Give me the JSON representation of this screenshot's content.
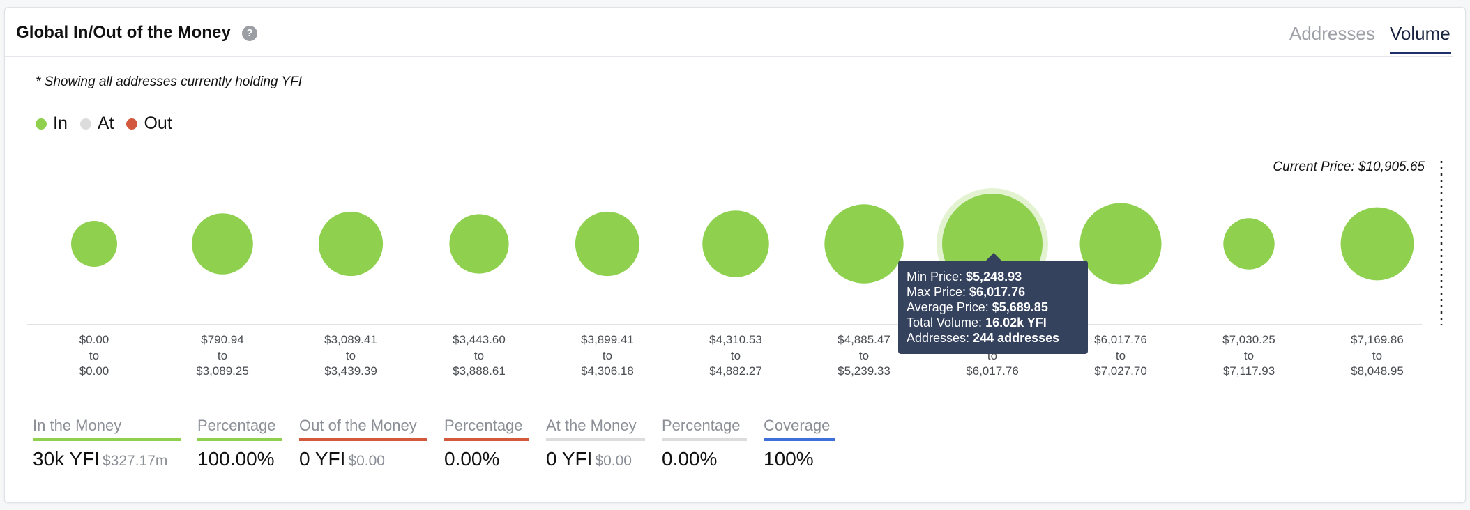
{
  "header": {
    "title": "Global In/Out of the Money",
    "tabs": [
      {
        "label": "Addresses",
        "active": false
      },
      {
        "label": "Volume",
        "active": true
      }
    ]
  },
  "note": "* Showing all addresses currently holding YFI",
  "legend": [
    {
      "label": "In",
      "color": "#8fd14f"
    },
    {
      "label": "At",
      "color": "#dcdcdc"
    },
    {
      "label": "Out",
      "color": "#d2583e"
    }
  ],
  "current_price_label": "Current Price: $10,905.65",
  "chart_data": {
    "type": "bubble",
    "current_price": 10905.65,
    "bins": [
      {
        "from": "$0.00",
        "to": "$0.00",
        "size": 0.21,
        "status": "In"
      },
      {
        "from": "$790.94",
        "to": "$3,089.25",
        "size": 0.37,
        "status": "In"
      },
      {
        "from": "$3,089.41",
        "to": "$3,439.39",
        "size": 0.41,
        "status": "In"
      },
      {
        "from": "$3,443.60",
        "to": "$3,888.61",
        "size": 0.35,
        "status": "In"
      },
      {
        "from": "$3,899.41",
        "to": "$4,306.18",
        "size": 0.41,
        "status": "In"
      },
      {
        "from": "$4,310.53",
        "to": "$4,882.27",
        "size": 0.44,
        "status": "In"
      },
      {
        "from": "$4,885.47",
        "to": "$5,239.33",
        "size": 0.62,
        "status": "In"
      },
      {
        "from": "$5,248.93",
        "to": "$6,017.76",
        "size": 1.0,
        "status": "In",
        "highlighted": true
      },
      {
        "from": "$6,017.76",
        "to": "$7,027.70",
        "size": 0.66,
        "status": "In"
      },
      {
        "from": "$7,030.25",
        "to": "$7,117.93",
        "size": 0.26,
        "status": "In"
      },
      {
        "from": "$7,169.86",
        "to": "$8,048.95",
        "size": 0.53,
        "status": "In"
      }
    ],
    "to_word": "to"
  },
  "tooltip": {
    "rows": [
      {
        "label": "Min Price:",
        "value": "$5,248.93"
      },
      {
        "label": "Max Price:",
        "value": "$6,017.76"
      },
      {
        "label": "Average Price:",
        "value": "$5,689.85"
      },
      {
        "label": "Total Volume:",
        "value": "16.02k YFI"
      },
      {
        "label": "Addresses:",
        "value": "244 addresses"
      }
    ]
  },
  "stats": [
    {
      "label": "In the Money",
      "value": "30k YFI",
      "sub": "$327.17m",
      "color": "#8fd14f"
    },
    {
      "label": "Percentage",
      "value": "100.00%",
      "sub": "",
      "color": "#8fd14f"
    },
    {
      "label": "Out of the Money",
      "value": "0 YFI",
      "sub": "$0.00",
      "color": "#d2583e"
    },
    {
      "label": "Percentage",
      "value": "0.00%",
      "sub": "",
      "color": "#d2583e"
    },
    {
      "label": "At the Money",
      "value": "0 YFI",
      "sub": "$0.00",
      "color": "#dcdcdc"
    },
    {
      "label": "Percentage",
      "value": "0.00%",
      "sub": "",
      "color": "#dcdcdc"
    },
    {
      "label": "Coverage",
      "value": "100%",
      "sub": "",
      "color": "#3f6fd8"
    }
  ]
}
